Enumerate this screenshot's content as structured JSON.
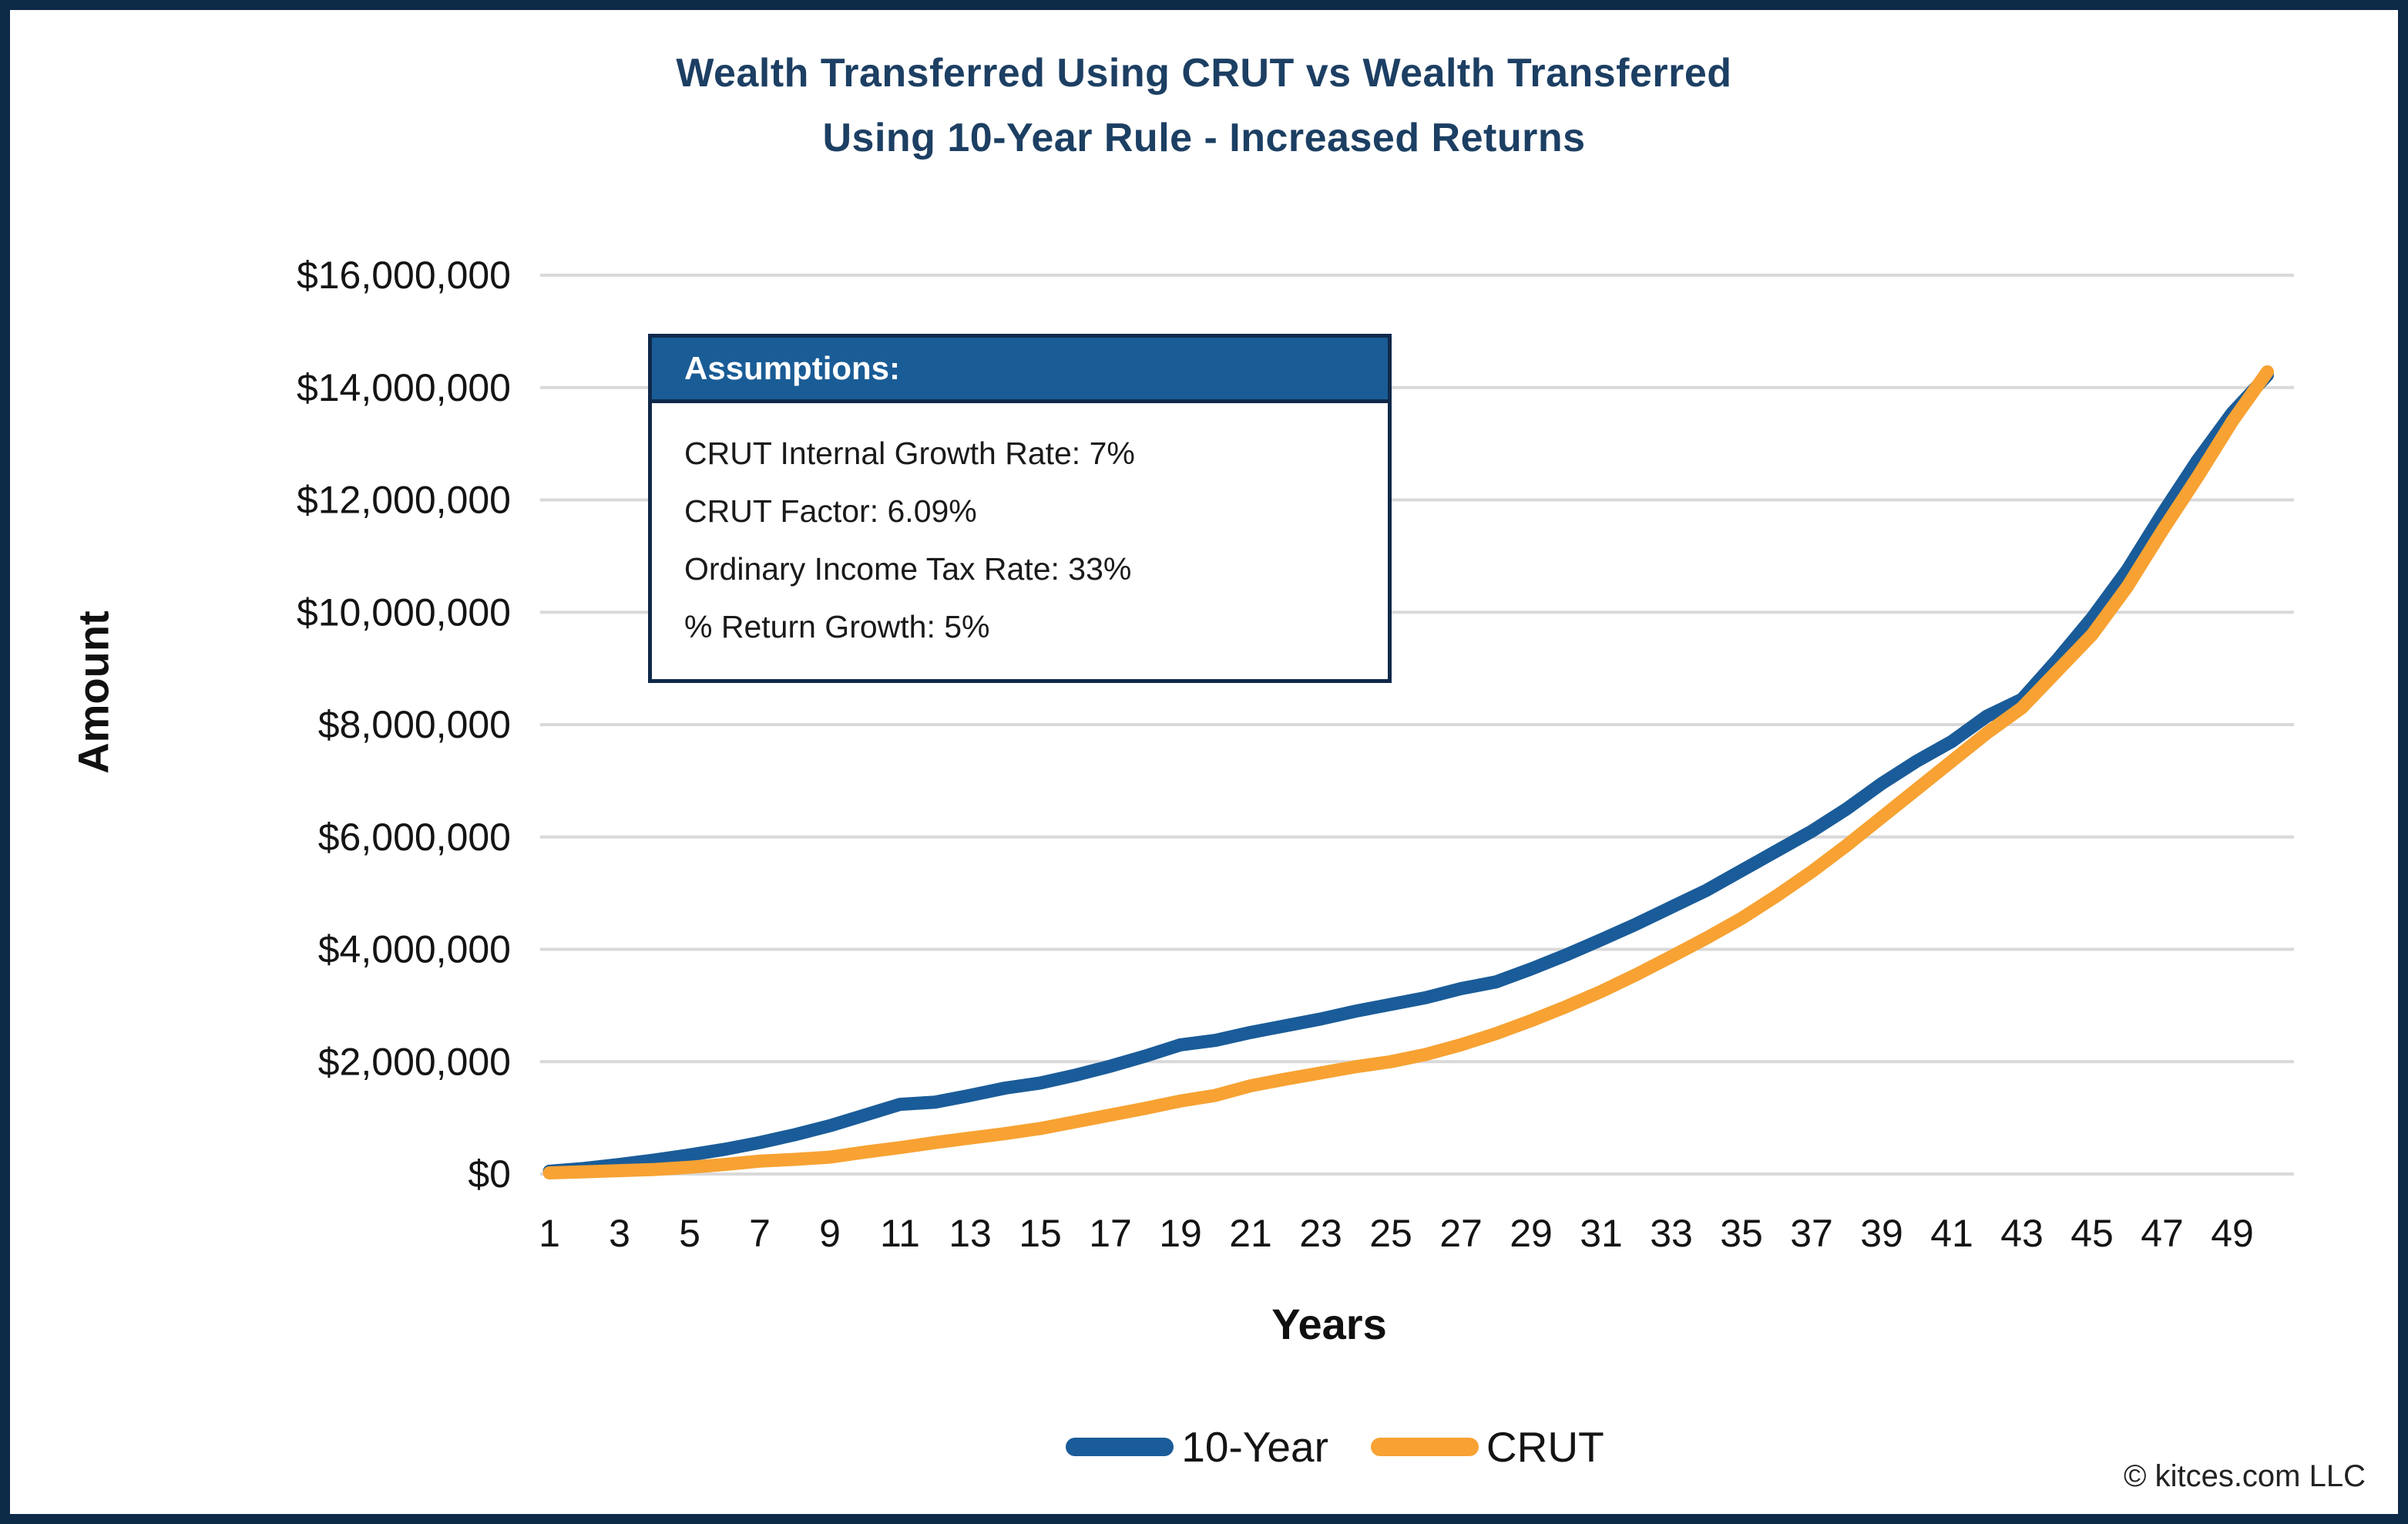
{
  "title": {
    "line1": "Wealth Transferred Using CRUT vs Wealth Transferred",
    "line2": "Using 10-Year Rule - Increased Returns"
  },
  "assumptions": {
    "header": "Assumptions:",
    "items": [
      "CRUT Internal Growth Rate: 7%",
      "CRUT Factor: 6.09%",
      "Ordinary Income Tax Rate: 33%",
      "% Return Growth: 5%"
    ]
  },
  "axes": {
    "y_title": "Amount",
    "x_title": "Years"
  },
  "footer": {
    "copyright": "© kitces.com LLC"
  },
  "colors": {
    "frame_border": "#0d2a47",
    "title_text": "#1c3f63",
    "assumptions_header_bg": "#1a5c96",
    "gridline": "#d9d9d9",
    "axis_text": "#141414",
    "blue_series": "#1a5c99",
    "orange_series": "#f7a233"
  },
  "chart_data": {
    "type": "line",
    "title": "Wealth Transferred Using CRUT vs Wealth Transferred Using 10-Year Rule - Increased Returns",
    "xlabel": "Years",
    "ylabel": "Amount",
    "grid": "horizontal",
    "legend_position": "bottom",
    "x": [
      1,
      2,
      3,
      4,
      5,
      6,
      7,
      8,
      9,
      10,
      11,
      12,
      13,
      14,
      15,
      16,
      17,
      18,
      19,
      20,
      21,
      22,
      23,
      24,
      25,
      26,
      27,
      28,
      29,
      30,
      31,
      32,
      33,
      34,
      35,
      36,
      37,
      38,
      39,
      40,
      41,
      42,
      43,
      44,
      45,
      46,
      47,
      48,
      49,
      50
    ],
    "x_tick_values": [
      1,
      3,
      5,
      7,
      9,
      11,
      13,
      15,
      17,
      19,
      21,
      23,
      25,
      27,
      29,
      31,
      33,
      35,
      37,
      39,
      41,
      43,
      45,
      47,
      49
    ],
    "xlim": [
      1,
      50
    ],
    "ylim": [
      0,
      16000000
    ],
    "y_ticks": [
      0,
      2000000,
      4000000,
      6000000,
      8000000,
      10000000,
      12000000,
      14000000,
      16000000
    ],
    "y_tick_labels": [
      "$0",
      "$2,000,000",
      "$4,000,000",
      "$6,000,000",
      "$8,000,000",
      "$10,000,000",
      "$12,000,000",
      "$14,000,000",
      "$16,000,000"
    ],
    "series": [
      {
        "name": "10-Year",
        "color": "#1a5c99",
        "values": [
          50000,
          100000,
          170000,
          250000,
          340000,
          440000,
          560000,
          700000,
          860000,
          1050000,
          1240000,
          1280000,
          1400000,
          1530000,
          1620000,
          1760000,
          1920000,
          2100000,
          2300000,
          2380000,
          2520000,
          2640000,
          2760000,
          2900000,
          3020000,
          3140000,
          3300000,
          3420000,
          3650000,
          3900000,
          4170000,
          4450000,
          4750000,
          5050000,
          5400000,
          5750000,
          6100000,
          6500000,
          6950000,
          7350000,
          7700000,
          8150000,
          8450000,
          9150000,
          9900000,
          10750000,
          11750000,
          12700000,
          13550000,
          14220000
        ]
      },
      {
        "name": "CRUT",
        "color": "#f7a233",
        "values": [
          20000,
          40000,
          60000,
          80000,
          120000,
          170000,
          230000,
          260000,
          300000,
          390000,
          470000,
          560000,
          640000,
          720000,
          810000,
          930000,
          1050000,
          1170000,
          1300000,
          1400000,
          1570000,
          1690000,
          1800000,
          1910000,
          2000000,
          2130000,
          2300000,
          2500000,
          2730000,
          2980000,
          3250000,
          3550000,
          3870000,
          4200000,
          4550000,
          4950000,
          5380000,
          5850000,
          6350000,
          6850000,
          7350000,
          7850000,
          8300000,
          8950000,
          9600000,
          10450000,
          11450000,
          12400000,
          13400000,
          14280000
        ]
      }
    ]
  }
}
